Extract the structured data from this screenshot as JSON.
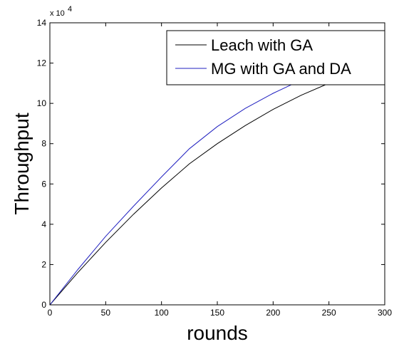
{
  "chart_data": {
    "type": "line",
    "xlabel": "rounds",
    "ylabel": "Throughput",
    "xlim": [
      0,
      300
    ],
    "ylim": [
      0,
      140000
    ],
    "xticks": [
      0,
      50,
      100,
      150,
      200,
      250,
      300
    ],
    "yticks": [
      0,
      20000,
      40000,
      60000,
      80000,
      100000,
      120000,
      140000
    ],
    "ytick_labels": [
      "0",
      "2",
      "4",
      "6",
      "8",
      "10",
      "12",
      "14"
    ],
    "y_multiplier": "x 10",
    "y_multiplier_exp": "4",
    "grid": false,
    "legend_placement": "top-right",
    "series": [
      {
        "name": "Leach with GA",
        "color": "#000000",
        "x": [
          0,
          25,
          50,
          75,
          100,
          125,
          150,
          175,
          200,
          225,
          250,
          275,
          300
        ],
        "values": [
          0,
          16000,
          31000,
          45000,
          58000,
          70000,
          80000,
          89000,
          97000,
          104000,
          110000,
          115000,
          119000
        ]
      },
      {
        "name": "MG with GA and DA",
        "color": "#2020c0",
        "x": [
          0,
          25,
          50,
          75,
          100,
          125,
          150,
          175,
          200,
          225,
          250,
          275,
          300
        ],
        "values": [
          0,
          17500,
          34000,
          49000,
          63500,
          77500,
          88500,
          97500,
          105000,
          111500,
          117000,
          121500,
          124000
        ]
      }
    ]
  }
}
